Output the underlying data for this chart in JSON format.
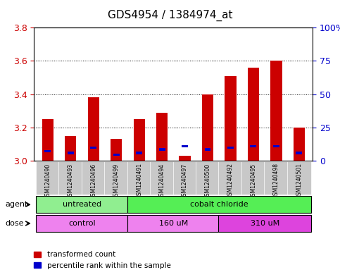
{
  "title": "GDS4954 / 1384974_at",
  "samples": [
    "GSM1240490",
    "GSM1240493",
    "GSM1240496",
    "GSM1240499",
    "GSM1240491",
    "GSM1240494",
    "GSM1240497",
    "GSM1240500",
    "GSM1240492",
    "GSM1240495",
    "GSM1240498",
    "GSM1240501"
  ],
  "red_values": [
    3.25,
    3.15,
    3.38,
    3.13,
    3.25,
    3.29,
    3.03,
    3.4,
    3.51,
    3.56,
    3.6,
    3.2
  ],
  "blue_values": [
    3.05,
    3.04,
    3.07,
    3.03,
    3.04,
    3.06,
    3.08,
    3.06,
    3.07,
    3.08,
    3.08,
    3.04
  ],
  "y_min": 3.0,
  "y_max": 3.8,
  "y_ticks": [
    3.0,
    3.2,
    3.4,
    3.6,
    3.8
  ],
  "right_y_ticks": [
    0,
    25,
    50,
    75,
    100
  ],
  "right_y_labels": [
    "0",
    "25",
    "50",
    "75",
    "100%"
  ],
  "agent_color_light": "#90EE90",
  "agent_color_bright": "#55EE55",
  "dose_color_light": "#EE82EE",
  "dose_color_dark": "#DD44DD",
  "bar_color": "#CC0000",
  "blue_color": "#0000CC",
  "bg_color": "#FFFFFF",
  "tick_label_color_left": "#CC0000",
  "tick_label_color_right": "#0000CC",
  "bar_width": 0.5,
  "legend_items": [
    "transformed count",
    "percentile rank within the sample"
  ]
}
